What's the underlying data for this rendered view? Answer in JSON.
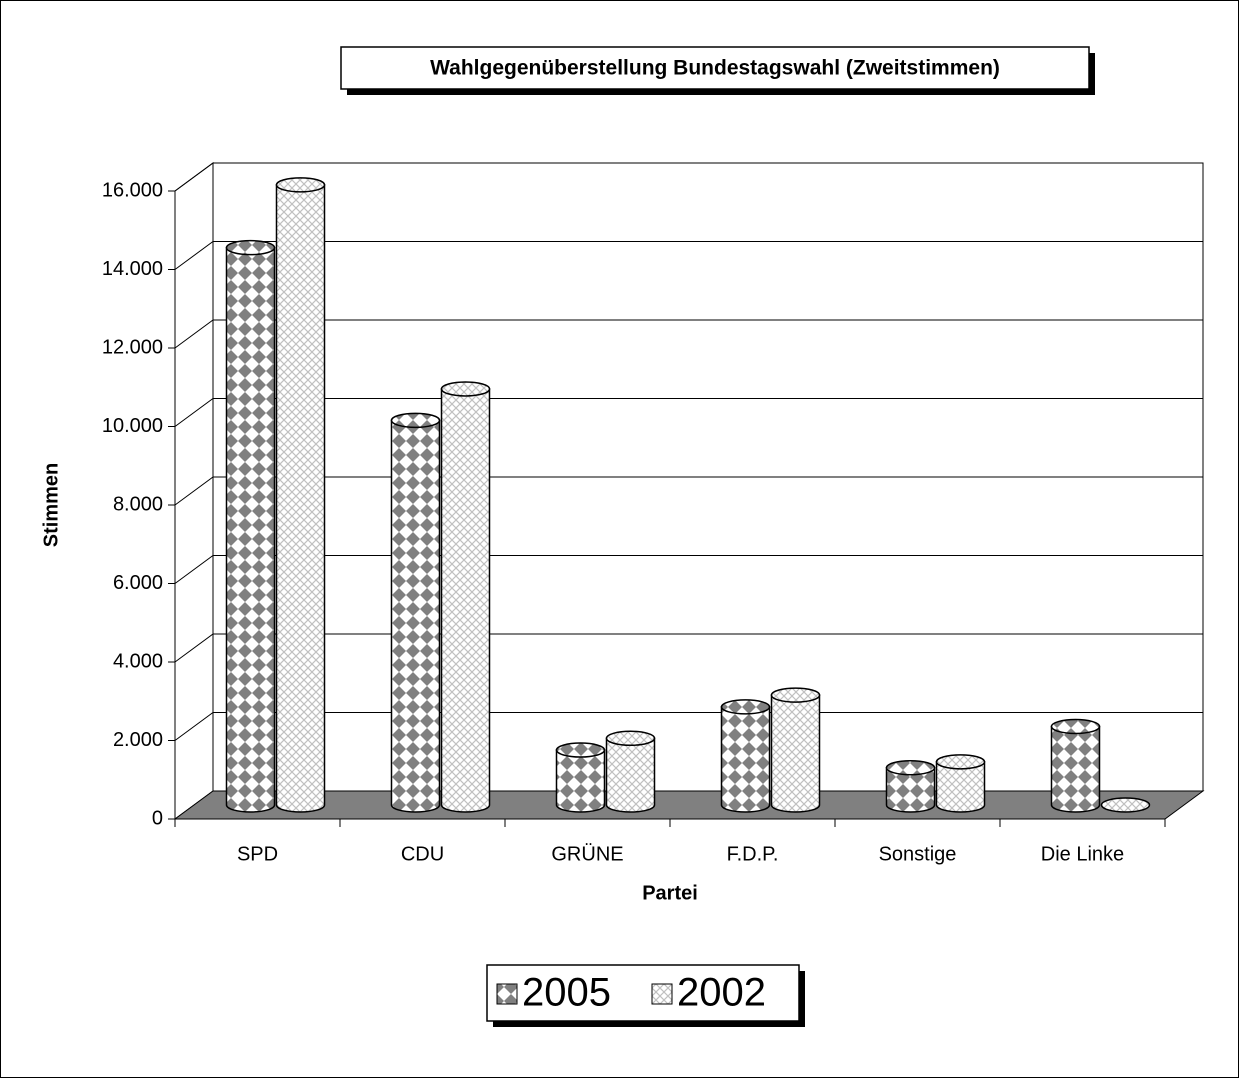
{
  "chart_data": {
    "type": "bar",
    "title": "Wahlgegenüberstellung Bundestagswahl (Zweitstimmen)",
    "x_label": "Partei",
    "y_label": "Stimmen",
    "categories": [
      "SPD",
      "CDU",
      "GRÜNE",
      "F.D.P.",
      "Sonstige",
      "Die Linke"
    ],
    "series": [
      {
        "name": "2005",
        "color": "#808080",
        "values": [
          14200,
          9800,
          1400,
          2500,
          950,
          2000
        ]
      },
      {
        "name": "2002",
        "color": "#c0c0c0",
        "values": [
          15800,
          10600,
          1700,
          2800,
          1100,
          0
        ]
      }
    ],
    "ylim": [
      0,
      16000
    ],
    "yticks": [
      0,
      {
        "value": 2000,
        "label": "2.000"
      },
      {
        "value": 4000,
        "label": "4.000"
      },
      {
        "value": 6000,
        "label": "6.000"
      },
      {
        "value": 8000,
        "label": "8.000"
      },
      {
        "value": 10000,
        "label": "10.000"
      },
      {
        "value": 12000,
        "label": "12.000"
      },
      {
        "value": 14000,
        "label": "14.000"
      },
      {
        "value": 16000,
        "label": "16.000"
      }
    ],
    "grid": true,
    "legend": "bottom"
  }
}
